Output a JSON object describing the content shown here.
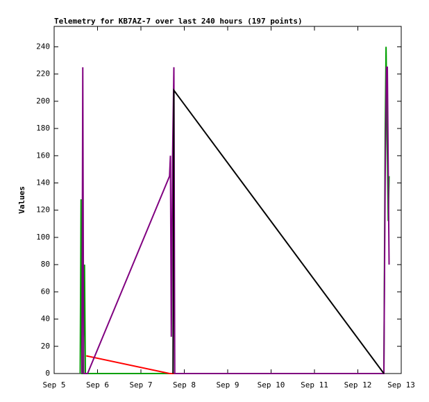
{
  "chart_data": {
    "type": "line",
    "title": "Telemetry for KB7AZ-7 over last 240 hours (197 points)",
    "y_label": "Values",
    "xlim": [
      5,
      13
    ],
    "xticks": [
      {
        "value": 5,
        "label": "Sep 5"
      },
      {
        "value": 6,
        "label": "Sep 6"
      },
      {
        "value": 7,
        "label": "Sep 7"
      },
      {
        "value": 8,
        "label": "Sep 8"
      },
      {
        "value": 9,
        "label": "Sep 9"
      },
      {
        "value": 10,
        "label": "Sep 10"
      },
      {
        "value": 11,
        "label": "Sep 11"
      },
      {
        "value": 12,
        "label": "Sep 12"
      },
      {
        "value": 13,
        "label": "Sep 13"
      }
    ],
    "ylim": [
      0,
      255
    ],
    "yticks": [
      0,
      20,
      40,
      60,
      80,
      100,
      120,
      140,
      160,
      180,
      200,
      220,
      240
    ],
    "series": [
      {
        "color": "#00a000",
        "x": [
          5.6,
          5.62,
          5.64,
          5.67,
          5.7,
          5.72,
          5.74,
          12.6,
          12.63,
          12.65,
          12.67,
          12.7,
          12.72
        ],
        "values": [
          0,
          128,
          0,
          0,
          80,
          0,
          0,
          0,
          177,
          240,
          187,
          112,
          145
        ]
      },
      {
        "color": "#ff0000",
        "x": [
          5.74,
          7.66,
          12.6
        ],
        "values": [
          13,
          0,
          0
        ]
      },
      {
        "color": "#800080",
        "x": [
          5.64,
          5.66,
          5.68,
          5.77,
          7.66,
          7.68,
          7.7,
          7.73,
          7.76,
          7.78,
          12.6,
          12.63,
          12.66,
          12.68,
          12.72
        ],
        "values": [
          0,
          225,
          0,
          0,
          145,
          160,
          27,
          160,
          225,
          0,
          0,
          145,
          225,
          225,
          80
        ]
      },
      {
        "color": "#000000",
        "x": [
          7.74,
          7.76,
          12.6
        ],
        "values": [
          0,
          208,
          0
        ]
      }
    ]
  }
}
